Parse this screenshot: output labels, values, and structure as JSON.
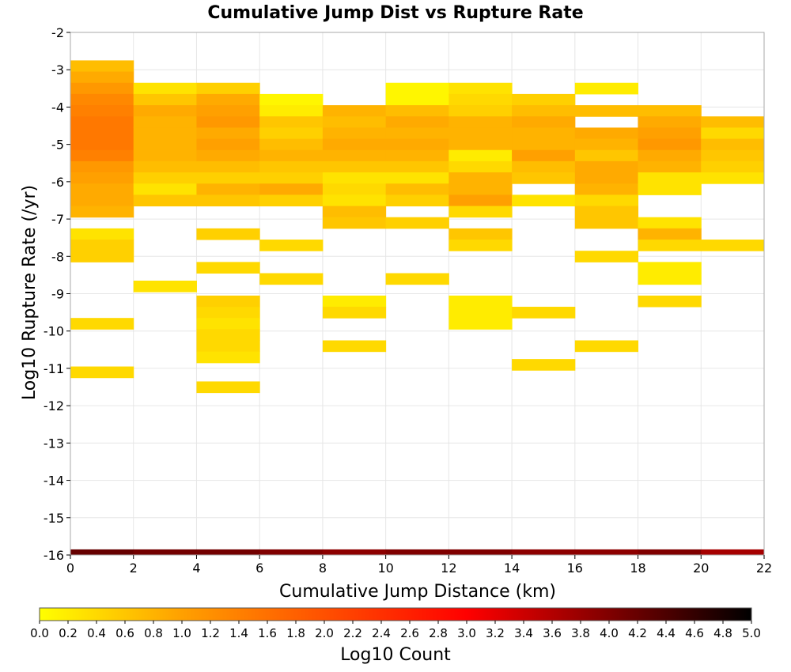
{
  "chart_data": {
    "type": "heatmap",
    "title": "Cumulative Jump Dist vs Rupture Rate",
    "xlabel": "Cumulative Jump Distance (km)",
    "ylabel": "Log10 Rupture Rate (/yr)",
    "xlim": [
      0,
      22
    ],
    "ylim": [
      -16,
      -2
    ],
    "x_ticks": [
      "0",
      "2",
      "4",
      "6",
      "8",
      "10",
      "12",
      "14",
      "16",
      "18",
      "20",
      "22"
    ],
    "y_ticks": [
      "-2",
      "-3",
      "-4",
      "-5",
      "-6",
      "-7",
      "-8",
      "-9",
      "-10",
      "-11",
      "-12",
      "-13",
      "-14",
      "-15",
      "-16"
    ],
    "x_bin_width": 2,
    "y_bin_height": 0.3,
    "grid": true,
    "colorbar": {
      "label": "Log10 Count",
      "min": 0.0,
      "max": 5.0,
      "ticks": [
        "0.0",
        "0.2",
        "0.4",
        "0.6",
        "0.8",
        "1.0",
        "1.2",
        "1.4",
        "1.6",
        "1.8",
        "2.0",
        "2.2",
        "2.4",
        "2.6",
        "2.8",
        "3.0",
        "3.2",
        "3.4",
        "3.6",
        "3.8",
        "4.0",
        "4.2",
        "4.4",
        "4.6",
        "4.8",
        "5.0"
      ],
      "placement": "bottom"
    },
    "colors": {
      "scale": [
        "#ffff00",
        "#ffa000",
        "#ff5000",
        "#ff0000",
        "#800000",
        "#000000"
      ]
    },
    "cells": [
      {
        "x": 0,
        "y": -2.9,
        "v": 0.7
      },
      {
        "x": 0,
        "y": -3.2,
        "v": 0.9
      },
      {
        "x": 0,
        "y": -3.5,
        "v": 1.1
      },
      {
        "x": 0,
        "y": -3.8,
        "v": 1.3
      },
      {
        "x": 0,
        "y": -4.1,
        "v": 1.4
      },
      {
        "x": 0,
        "y": -4.4,
        "v": 1.5
      },
      {
        "x": 0,
        "y": -4.7,
        "v": 1.5
      },
      {
        "x": 0,
        "y": -5.0,
        "v": 1.5
      },
      {
        "x": 0,
        "y": -5.3,
        "v": 1.4
      },
      {
        "x": 0,
        "y": -5.6,
        "v": 1.1
      },
      {
        "x": 0,
        "y": -5.9,
        "v": 1.0
      },
      {
        "x": 0,
        "y": -6.2,
        "v": 0.9
      },
      {
        "x": 0,
        "y": -6.5,
        "v": 0.9
      },
      {
        "x": 0,
        "y": -6.8,
        "v": 0.8
      },
      {
        "x": 0,
        "y": -7.4,
        "v": 0.3
      },
      {
        "x": 0,
        "y": -7.7,
        "v": 0.5
      },
      {
        "x": 0,
        "y": -8.0,
        "v": 0.5
      },
      {
        "x": 0,
        "y": -9.8,
        "v": 0.4
      },
      {
        "x": 0,
        "y": -11.1,
        "v": 0.4
      },
      {
        "x": 2,
        "y": -3.5,
        "v": 0.3
      },
      {
        "x": 2,
        "y": -3.8,
        "v": 0.6
      },
      {
        "x": 2,
        "y": -4.1,
        "v": 0.9
      },
      {
        "x": 2,
        "y": -4.4,
        "v": 0.8
      },
      {
        "x": 2,
        "y": -4.7,
        "v": 0.8
      },
      {
        "x": 2,
        "y": -5.0,
        "v": 0.8
      },
      {
        "x": 2,
        "y": -5.3,
        "v": 0.8
      },
      {
        "x": 2,
        "y": -5.6,
        "v": 0.7
      },
      {
        "x": 2,
        "y": -5.9,
        "v": 0.5
      },
      {
        "x": 2,
        "y": -6.2,
        "v": 0.3
      },
      {
        "x": 2,
        "y": -6.5,
        "v": 0.6
      },
      {
        "x": 2,
        "y": -8.8,
        "v": 0.3
      },
      {
        "x": 4,
        "y": -3.5,
        "v": 0.5
      },
      {
        "x": 4,
        "y": -3.8,
        "v": 0.9
      },
      {
        "x": 4,
        "y": -4.1,
        "v": 1.0
      },
      {
        "x": 4,
        "y": -4.4,
        "v": 1.1
      },
      {
        "x": 4,
        "y": -4.7,
        "v": 0.9
      },
      {
        "x": 4,
        "y": -5.0,
        "v": 1.0
      },
      {
        "x": 4,
        "y": -5.3,
        "v": 0.9
      },
      {
        "x": 4,
        "y": -5.6,
        "v": 0.7
      },
      {
        "x": 4,
        "y": -5.9,
        "v": 0.5
      },
      {
        "x": 4,
        "y": -6.2,
        "v": 0.8
      },
      {
        "x": 4,
        "y": -6.5,
        "v": 0.6
      },
      {
        "x": 4,
        "y": -7.4,
        "v": 0.5
      },
      {
        "x": 4,
        "y": -8.3,
        "v": 0.4
      },
      {
        "x": 4,
        "y": -9.2,
        "v": 0.5
      },
      {
        "x": 4,
        "y": -9.5,
        "v": 0.4
      },
      {
        "x": 4,
        "y": -9.8,
        "v": 0.3
      },
      {
        "x": 4,
        "y": -10.1,
        "v": 0.4
      },
      {
        "x": 4,
        "y": -10.4,
        "v": 0.4
      },
      {
        "x": 4,
        "y": -10.7,
        "v": 0.3
      },
      {
        "x": 4,
        "y": -11.5,
        "v": 0.4
      },
      {
        "x": 6,
        "y": -3.8,
        "v": 0.1
      },
      {
        "x": 6,
        "y": -4.1,
        "v": 0.2
      },
      {
        "x": 6,
        "y": -4.4,
        "v": 0.6
      },
      {
        "x": 6,
        "y": -4.7,
        "v": 0.5
      },
      {
        "x": 6,
        "y": -5.0,
        "v": 0.7
      },
      {
        "x": 6,
        "y": -5.3,
        "v": 0.8
      },
      {
        "x": 6,
        "y": -5.6,
        "v": 0.6
      },
      {
        "x": 6,
        "y": -5.9,
        "v": 0.5
      },
      {
        "x": 6,
        "y": -6.2,
        "v": 0.9
      },
      {
        "x": 6,
        "y": -6.5,
        "v": 0.5
      },
      {
        "x": 6,
        "y": -7.7,
        "v": 0.4
      },
      {
        "x": 6,
        "y": -8.6,
        "v": 0.4
      },
      {
        "x": 8,
        "y": -4.1,
        "v": 0.8
      },
      {
        "x": 8,
        "y": -4.4,
        "v": 0.7
      },
      {
        "x": 8,
        "y": -4.7,
        "v": 0.8
      },
      {
        "x": 8,
        "y": -5.0,
        "v": 0.9
      },
      {
        "x": 8,
        "y": -5.3,
        "v": 0.8
      },
      {
        "x": 8,
        "y": -5.6,
        "v": 0.6
      },
      {
        "x": 8,
        "y": -5.9,
        "v": 0.3
      },
      {
        "x": 8,
        "y": -6.2,
        "v": 0.4
      },
      {
        "x": 8,
        "y": -6.5,
        "v": 0.3
      },
      {
        "x": 8,
        "y": -6.8,
        "v": 0.7
      },
      {
        "x": 8,
        "y": -7.1,
        "v": 0.6
      },
      {
        "x": 8,
        "y": -9.2,
        "v": 0.2
      },
      {
        "x": 8,
        "y": -9.5,
        "v": 0.4
      },
      {
        "x": 8,
        "y": -10.4,
        "v": 0.4
      },
      {
        "x": 10,
        "y": -3.5,
        "v": 0.1
      },
      {
        "x": 10,
        "y": -3.8,
        "v": 0.1
      },
      {
        "x": 10,
        "y": -4.1,
        "v": 0.7
      },
      {
        "x": 10,
        "y": -4.4,
        "v": 0.9
      },
      {
        "x": 10,
        "y": -4.7,
        "v": 0.8
      },
      {
        "x": 10,
        "y": -5.0,
        "v": 0.9
      },
      {
        "x": 10,
        "y": -5.3,
        "v": 0.8
      },
      {
        "x": 10,
        "y": -5.6,
        "v": 0.6
      },
      {
        "x": 10,
        "y": -5.9,
        "v": 0.3
      },
      {
        "x": 10,
        "y": -6.2,
        "v": 0.7
      },
      {
        "x": 10,
        "y": -6.5,
        "v": 0.5
      },
      {
        "x": 10,
        "y": -7.1,
        "v": 0.5
      },
      {
        "x": 10,
        "y": -8.6,
        "v": 0.4
      },
      {
        "x": 12,
        "y": -3.5,
        "v": 0.3
      },
      {
        "x": 12,
        "y": -3.8,
        "v": 0.4
      },
      {
        "x": 12,
        "y": -4.1,
        "v": 0.5
      },
      {
        "x": 12,
        "y": -4.4,
        "v": 0.8
      },
      {
        "x": 12,
        "y": -4.7,
        "v": 0.8
      },
      {
        "x": 12,
        "y": -5.0,
        "v": 0.8
      },
      {
        "x": 12,
        "y": -5.3,
        "v": 0.2
      },
      {
        "x": 12,
        "y": -5.6,
        "v": 0.4
      },
      {
        "x": 12,
        "y": -5.9,
        "v": 0.8
      },
      {
        "x": 12,
        "y": -6.2,
        "v": 0.8
      },
      {
        "x": 12,
        "y": -6.5,
        "v": 1.0
      },
      {
        "x": 12,
        "y": -6.8,
        "v": 0.4
      },
      {
        "x": 12,
        "y": -7.4,
        "v": 0.6
      },
      {
        "x": 12,
        "y": -7.7,
        "v": 0.4
      },
      {
        "x": 12,
        "y": -9.2,
        "v": 0.2
      },
      {
        "x": 12,
        "y": -9.5,
        "v": 0.2
      },
      {
        "x": 12,
        "y": -9.8,
        "v": 0.2
      },
      {
        "x": 14,
        "y": -3.8,
        "v": 0.5
      },
      {
        "x": 14,
        "y": -4.1,
        "v": 0.7
      },
      {
        "x": 14,
        "y": -4.4,
        "v": 0.9
      },
      {
        "x": 14,
        "y": -4.7,
        "v": 0.8
      },
      {
        "x": 14,
        "y": -5.0,
        "v": 0.8
      },
      {
        "x": 14,
        "y": -5.3,
        "v": 1.0
      },
      {
        "x": 14,
        "y": -5.6,
        "v": 0.7
      },
      {
        "x": 14,
        "y": -5.9,
        "v": 0.6
      },
      {
        "x": 14,
        "y": -6.5,
        "v": 0.3
      },
      {
        "x": 14,
        "y": -9.5,
        "v": 0.4
      },
      {
        "x": 14,
        "y": -10.9,
        "v": 0.4
      },
      {
        "x": 16,
        "y": -3.5,
        "v": 0.2
      },
      {
        "x": 16,
        "y": -4.1,
        "v": 0.7
      },
      {
        "x": 16,
        "y": -4.7,
        "v": 0.9
      },
      {
        "x": 16,
        "y": -5.0,
        "v": 0.8
      },
      {
        "x": 16,
        "y": -5.3,
        "v": 0.6
      },
      {
        "x": 16,
        "y": -5.6,
        "v": 0.9
      },
      {
        "x": 16,
        "y": -5.9,
        "v": 0.9
      },
      {
        "x": 16,
        "y": -6.2,
        "v": 0.8
      },
      {
        "x": 16,
        "y": -6.5,
        "v": 0.4
      },
      {
        "x": 16,
        "y": -6.8,
        "v": 0.6
      },
      {
        "x": 16,
        "y": -7.1,
        "v": 0.6
      },
      {
        "x": 16,
        "y": -8.0,
        "v": 0.4
      },
      {
        "x": 16,
        "y": -10.4,
        "v": 0.4
      },
      {
        "x": 18,
        "y": -4.1,
        "v": 0.7
      },
      {
        "x": 18,
        "y": -4.4,
        "v": 0.9
      },
      {
        "x": 18,
        "y": -4.7,
        "v": 1.0
      },
      {
        "x": 18,
        "y": -5.0,
        "v": 1.1
      },
      {
        "x": 18,
        "y": -5.3,
        "v": 0.9
      },
      {
        "x": 18,
        "y": -5.6,
        "v": 0.8
      },
      {
        "x": 18,
        "y": -5.9,
        "v": 0.3
      },
      {
        "x": 18,
        "y": -6.2,
        "v": 0.3
      },
      {
        "x": 18,
        "y": -7.1,
        "v": 0.3
      },
      {
        "x": 18,
        "y": -7.4,
        "v": 0.8
      },
      {
        "x": 18,
        "y": -7.7,
        "v": 0.4
      },
      {
        "x": 18,
        "y": -8.3,
        "v": 0.2
      },
      {
        "x": 18,
        "y": -8.6,
        "v": 0.2
      },
      {
        "x": 18,
        "y": -9.2,
        "v": 0.4
      },
      {
        "x": 20,
        "y": -4.4,
        "v": 0.7
      },
      {
        "x": 20,
        "y": -4.7,
        "v": 0.4
      },
      {
        "x": 20,
        "y": -5.0,
        "v": 0.7
      },
      {
        "x": 20,
        "y": -5.3,
        "v": 0.6
      },
      {
        "x": 20,
        "y": -5.6,
        "v": 0.5
      },
      {
        "x": 20,
        "y": -5.9,
        "v": 0.3
      },
      {
        "x": 20,
        "y": -7.7,
        "v": 0.4
      }
    ],
    "bottom_row": {
      "y": -16,
      "height": 0.15,
      "values": [
        4.2,
        4.1,
        4.1,
        4.0,
        3.9,
        4.0,
        4.0,
        3.9,
        3.9,
        4.0,
        3.7
      ]
    }
  }
}
